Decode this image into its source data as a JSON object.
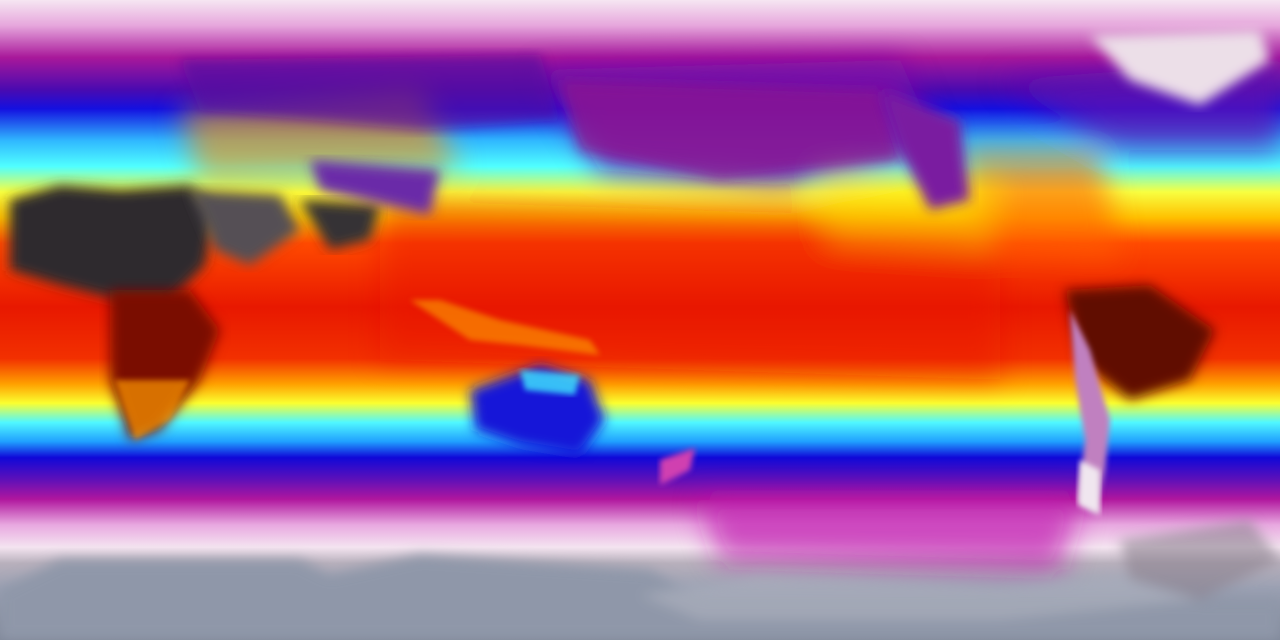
{
  "map": {
    "projection": "equirectangular",
    "palette": {
      "polar_light": "#f3dff0",
      "high_lat": "#b0169c",
      "mid_lat": "#1a10d8",
      "cool": "#3ff0ff",
      "warm": "#fff100",
      "hot": "#ff3a00",
      "tropical": "#e81400",
      "land_dry": "#2a2a2a",
      "antarctica": "#8a93a8"
    }
  }
}
